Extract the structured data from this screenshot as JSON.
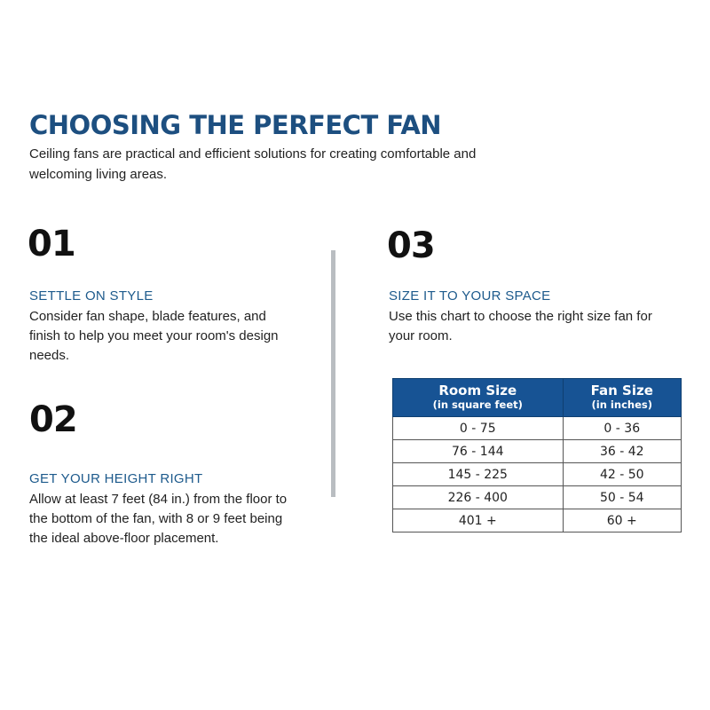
{
  "title": "CHOOSING THE PERFECT FAN",
  "intro": "Ceiling fans are practical and efficient solutions for creating comfortable and welcoming living areas.",
  "steps": [
    {
      "number": "01",
      "heading": "SETTLE ON STYLE",
      "text": "Consider fan shape, blade features, and finish to help you meet your room's design needs."
    },
    {
      "number": "02",
      "heading": "GET YOUR HEIGHT RIGHT",
      "text": "Allow at least 7 feet (84 in.) from the floor to the bottom of the fan, with 8 or 9 feet being the ideal above-floor placement."
    },
    {
      "number": "03",
      "heading": "SIZE IT TO YOUR SPACE",
      "text": "Use this chart to choose the right size fan for your room."
    }
  ],
  "table": {
    "headers": [
      {
        "label": "Room Size",
        "unit": "(in square feet)"
      },
      {
        "label": "Fan Size",
        "unit": "(in inches)"
      }
    ],
    "rows": [
      [
        "0 - 75",
        "0 - 36"
      ],
      [
        "76 - 144",
        "36 - 42"
      ],
      [
        "145 - 225",
        "42 - 50"
      ],
      [
        "226 - 400",
        "50 - 54"
      ],
      [
        "401 +",
        "60 +"
      ]
    ]
  },
  "colors": {
    "accent": "#1d4f80",
    "table_header": "#175394",
    "divider": "#b9bdc1"
  }
}
